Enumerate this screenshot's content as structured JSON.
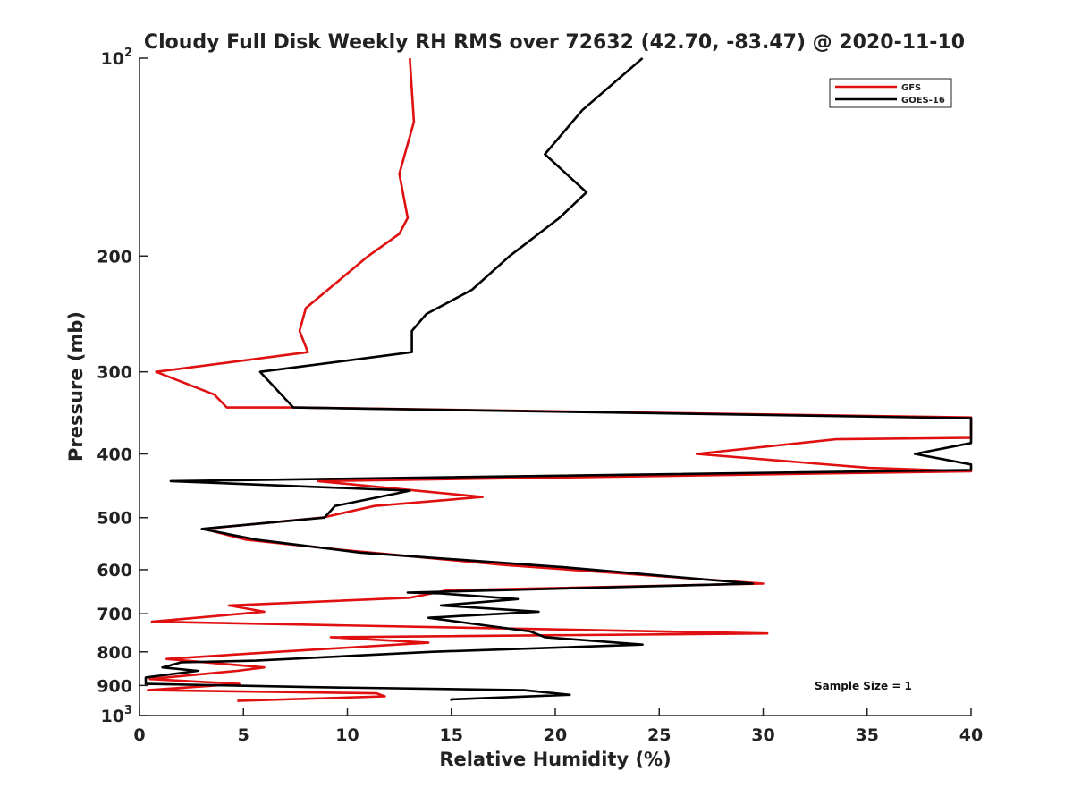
{
  "chart_data": {
    "type": "line",
    "title": "Cloudy Full Disk Weekly RH RMS over 72632 (42.70, -83.47) @ 2020-11-10",
    "xlabel": "Relative Humidity (%)",
    "ylabel": "Pressure (mb)",
    "xlim": [
      0,
      40
    ],
    "ylim": [
      100,
      1000
    ],
    "y_scale": "log",
    "y_reversed": true,
    "x_ticks": [
      "0",
      "5",
      "10",
      "15",
      "20",
      "25",
      "30",
      "35",
      "40"
    ],
    "y_ticks": [
      {
        "value": 100,
        "base": "10",
        "exp": "2"
      },
      {
        "value": 200,
        "label": "200"
      },
      {
        "value": 300,
        "label": "300"
      },
      {
        "value": 400,
        "label": "400"
      },
      {
        "value": 500,
        "label": "500"
      },
      {
        "value": 600,
        "label": "600"
      },
      {
        "value": 700,
        "label": "700"
      },
      {
        "value": 800,
        "label": "800"
      },
      {
        "value": 900,
        "label": "900"
      },
      {
        "value": 1000,
        "base": "10",
        "exp": "3"
      }
    ],
    "legend_position": "top-right",
    "annotation": "Sample Size = 1",
    "series": [
      {
        "name": "GFS",
        "color": "#e01010",
        "points": [
          [
            13.0,
            100
          ],
          [
            13.2,
            125
          ],
          [
            12.5,
            150
          ],
          [
            12.9,
            175
          ],
          [
            12.5,
            185
          ],
          [
            11.0,
            200
          ],
          [
            8.0,
            240
          ],
          [
            7.7,
            260
          ],
          [
            8.1,
            280
          ],
          [
            0.8,
            300
          ],
          [
            3.6,
            325
          ],
          [
            4.2,
            340
          ],
          [
            7.5,
            340
          ],
          [
            40.0,
            352
          ],
          [
            40.0,
            378
          ],
          [
            33.5,
            380
          ],
          [
            26.8,
            400
          ],
          [
            35.1,
            420
          ],
          [
            40.0,
            425
          ],
          [
            8.6,
            440
          ],
          [
            16.5,
            465
          ],
          [
            11.3,
            480
          ],
          [
            8.8,
            500
          ],
          [
            3.1,
            520
          ],
          [
            5.1,
            540
          ],
          [
            9.8,
            560
          ],
          [
            17.5,
            590
          ],
          [
            30.0,
            630
          ],
          [
            14.8,
            645
          ],
          [
            13.0,
            662
          ],
          [
            4.3,
            680
          ],
          [
            6.0,
            695
          ],
          [
            0.6,
            720
          ],
          [
            30.2,
            750
          ],
          [
            9.2,
            760
          ],
          [
            13.9,
            775
          ],
          [
            6.6,
            800
          ],
          [
            1.3,
            820
          ],
          [
            6.0,
            845
          ],
          [
            4.7,
            855
          ],
          [
            0.5,
            880
          ],
          [
            4.8,
            895
          ],
          [
            0.4,
            915
          ],
          [
            11.4,
            925
          ],
          [
            11.8,
            935
          ],
          [
            4.7,
            950
          ]
        ]
      },
      {
        "name": "GOES-16",
        "color": "#000000",
        "points": [
          [
            24.2,
            100
          ],
          [
            21.3,
            120
          ],
          [
            19.5,
            140
          ],
          [
            21.5,
            160
          ],
          [
            20.2,
            175
          ],
          [
            17.8,
            200
          ],
          [
            16.0,
            225
          ],
          [
            13.8,
            245
          ],
          [
            13.1,
            260
          ],
          [
            13.1,
            280
          ],
          [
            5.8,
            300
          ],
          [
            7.4,
            340
          ],
          [
            40.0,
            353
          ],
          [
            40.0,
            385
          ],
          [
            37.3,
            400
          ],
          [
            40.0,
            415
          ],
          [
            40.0,
            423
          ],
          [
            1.5,
            440
          ],
          [
            13.0,
            455
          ],
          [
            9.4,
            480
          ],
          [
            8.9,
            500
          ],
          [
            3.0,
            520
          ],
          [
            5.6,
            540
          ],
          [
            10.6,
            565
          ],
          [
            20.5,
            595
          ],
          [
            29.5,
            630
          ],
          [
            12.9,
            650
          ],
          [
            14.5,
            652
          ],
          [
            18.2,
            665
          ],
          [
            14.5,
            680
          ],
          [
            19.2,
            695
          ],
          [
            13.9,
            710
          ],
          [
            18.8,
            745
          ],
          [
            19.5,
            760
          ],
          [
            24.2,
            780
          ],
          [
            14.0,
            800
          ],
          [
            5.6,
            825
          ],
          [
            2.0,
            830
          ],
          [
            1.1,
            845
          ],
          [
            2.8,
            855
          ],
          [
            0.3,
            875
          ],
          [
            0.3,
            895
          ],
          [
            8.1,
            905
          ],
          [
            18.5,
            915
          ],
          [
            20.7,
            930
          ],
          [
            15.0,
            945
          ],
          [
            15.0,
            950
          ]
        ]
      }
    ]
  }
}
